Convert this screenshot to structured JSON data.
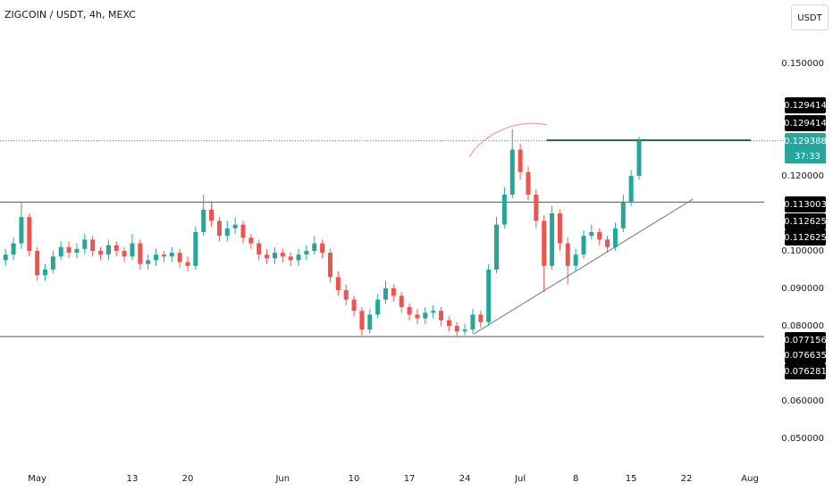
{
  "chart_data": {
    "type": "candlestick",
    "title": "ZIGCOIN / USDT, 4h, MEXC",
    "currency_button": "USDT",
    "up_color": "#26a69a",
    "down_color": "#ef5350",
    "grid": false,
    "ylim": [
      0.0431,
      0.1669
    ],
    "yticks": [
      {
        "value": 0.15,
        "label": "0.150000"
      },
      {
        "value": 0.12,
        "label": "0.120000"
      },
      {
        "value": 0.1,
        "label": "0.100000"
      },
      {
        "value": 0.09,
        "label": "0.090000"
      },
      {
        "value": 0.08,
        "label": "0.080000"
      },
      {
        "value": 0.06,
        "label": "0.060000"
      },
      {
        "value": 0.05,
        "label": "0.050000"
      }
    ],
    "xlim": [
      -4.7,
      91.8
    ],
    "xticks": [
      {
        "value": 0,
        "label": "May"
      },
      {
        "value": 12,
        "label": "13"
      },
      {
        "value": 19,
        "label": "20"
      },
      {
        "value": 31,
        "label": "Jun"
      },
      {
        "value": 40,
        "label": "10"
      },
      {
        "value": 47,
        "label": "17"
      },
      {
        "value": 54,
        "label": "24"
      },
      {
        "value": 61,
        "label": "Jul"
      },
      {
        "value": 68,
        "label": "8"
      },
      {
        "value": 75,
        "label": "15"
      },
      {
        "value": 82,
        "label": "22"
      },
      {
        "value": 90,
        "label": "Aug"
      }
    ],
    "x": [
      -4,
      -3,
      -2,
      -1,
      0,
      1,
      2,
      3,
      4,
      5,
      6,
      7,
      8,
      9,
      10,
      11,
      12,
      13,
      14,
      15,
      16,
      17,
      18,
      19,
      20,
      21,
      22,
      23,
      24,
      25,
      26,
      27,
      28,
      29,
      30,
      31,
      32,
      33,
      34,
      35,
      36,
      37,
      38,
      39,
      40,
      41,
      42,
      43,
      44,
      45,
      46,
      47,
      48,
      49,
      50,
      51,
      52,
      53,
      54,
      55,
      56,
      57,
      58,
      59,
      60,
      61,
      62,
      63,
      64,
      65,
      66,
      67,
      68,
      69,
      70,
      71,
      72,
      73,
      74,
      75,
      76
    ],
    "open": [
      0.0975,
      0.099,
      0.102,
      0.109,
      0.1,
      0.0935,
      0.095,
      0.0985,
      0.101,
      0.0995,
      0.1005,
      0.103,
      0.1,
      0.099,
      0.1015,
      0.1,
      0.0985,
      0.102,
      0.0965,
      0.0975,
      0.099,
      0.0985,
      0.0995,
      0.097,
      0.096,
      0.105,
      0.111,
      0.108,
      0.104,
      0.106,
      0.107,
      0.1035,
      0.102,
      0.099,
      0.098,
      0.0995,
      0.0985,
      0.0975,
      0.099,
      0.1,
      0.102,
      0.0995,
      0.093,
      0.0895,
      0.087,
      0.084,
      0.079,
      0.083,
      0.087,
      0.09,
      0.088,
      0.085,
      0.083,
      0.082,
      0.0835,
      0.084,
      0.0815,
      0.08,
      0.0785,
      0.079,
      0.083,
      0.081,
      0.095,
      0.107,
      0.115,
      0.127,
      0.121,
      0.115,
      0.108,
      0.096,
      0.11,
      0.102,
      0.096,
      0.099,
      0.104,
      0.105,
      0.103,
      0.101,
      0.106,
      0.113,
      0.12
    ],
    "high": [
      0.1005,
      0.1035,
      0.113,
      0.11,
      0.101,
      0.0965,
      0.1,
      0.1025,
      0.1025,
      0.102,
      0.1045,
      0.104,
      0.101,
      0.103,
      0.1025,
      0.101,
      0.1045,
      0.103,
      0.099,
      0.1005,
      0.1,
      0.101,
      0.1005,
      0.0985,
      0.1065,
      0.115,
      0.113,
      0.109,
      0.108,
      0.109,
      0.108,
      0.1045,
      0.103,
      0.1005,
      0.101,
      0.1005,
      0.0995,
      0.1005,
      0.1015,
      0.104,
      0.103,
      0.1005,
      0.0945,
      0.091,
      0.088,
      0.085,
      0.0845,
      0.0885,
      0.092,
      0.091,
      0.089,
      0.086,
      0.0845,
      0.085,
      0.0855,
      0.085,
      0.0825,
      0.081,
      0.0805,
      0.0845,
      0.084,
      0.0965,
      0.109,
      0.117,
      0.1324,
      0.1285,
      0.1225,
      0.1165,
      0.1095,
      0.112,
      0.111,
      0.1035,
      0.1005,
      0.1055,
      0.107,
      0.106,
      0.104,
      0.1075,
      0.115,
      0.1215,
      0.1305
    ],
    "low": [
      0.096,
      0.0975,
      0.1005,
      0.0985,
      0.092,
      0.092,
      0.094,
      0.0975,
      0.098,
      0.098,
      0.099,
      0.0985,
      0.0975,
      0.0975,
      0.0985,
      0.097,
      0.0975,
      0.095,
      0.095,
      0.096,
      0.097,
      0.097,
      0.0955,
      0.0945,
      0.095,
      0.104,
      0.1065,
      0.1025,
      0.1025,
      0.1045,
      0.102,
      0.1005,
      0.0975,
      0.0965,
      0.0965,
      0.097,
      0.096,
      0.096,
      0.0975,
      0.099,
      0.098,
      0.0915,
      0.088,
      0.0855,
      0.0825,
      0.0775,
      0.078,
      0.082,
      0.086,
      0.0865,
      0.0835,
      0.0815,
      0.0805,
      0.0805,
      0.082,
      0.08,
      0.0785,
      0.0772,
      0.0775,
      0.078,
      0.0795,
      0.08,
      0.094,
      0.106,
      0.114,
      0.119,
      0.1135,
      0.106,
      0.089,
      0.095,
      0.1,
      0.091,
      0.0945,
      0.098,
      0.103,
      0.1015,
      0.0995,
      0.1,
      0.105,
      0.112,
      0.119
    ],
    "close": [
      0.099,
      0.102,
      0.109,
      0.1,
      0.0935,
      0.095,
      0.0985,
      0.101,
      0.0995,
      0.1005,
      0.103,
      0.1,
      0.099,
      0.1015,
      0.1,
      0.0985,
      0.102,
      0.0965,
      0.0975,
      0.099,
      0.0985,
      0.0995,
      0.097,
      0.096,
      0.105,
      0.111,
      0.108,
      0.104,
      0.106,
      0.107,
      0.1035,
      0.102,
      0.099,
      0.098,
      0.0995,
      0.0985,
      0.0975,
      0.099,
      0.1,
      0.102,
      0.0995,
      0.093,
      0.0895,
      0.087,
      0.084,
      0.079,
      0.083,
      0.087,
      0.09,
      0.088,
      0.085,
      0.083,
      0.082,
      0.0835,
      0.084,
      0.0815,
      0.08,
      0.0785,
      0.079,
      0.083,
      0.081,
      0.095,
      0.107,
      0.115,
      0.127,
      0.121,
      0.115,
      0.108,
      0.096,
      0.11,
      0.102,
      0.096,
      0.099,
      0.104,
      0.105,
      0.103,
      0.101,
      0.106,
      0.113,
      0.12,
      0.129388
    ],
    "hlines": [
      0.113003,
      0.077156
    ],
    "current_price": 0.129388,
    "trendline": {
      "x": [
        55.1,
        82.8
      ],
      "y": [
        0.0778,
        0.1138
      ]
    },
    "resistance": {
      "x": [
        64.3,
        90.1
      ],
      "y": [
        0.1295,
        0.1295
      ]
    },
    "price_labels": [
      {
        "value": 0.129414,
        "label": "0.129414",
        "color": "#000000"
      },
      {
        "value": 0.129414,
        "label": "0.129414",
        "color": "#000000"
      },
      {
        "value": 0.129388,
        "label": "0.129388",
        "color": "#26a69a"
      },
      {
        "value": 0.113003,
        "label": "0.113003",
        "color": "#000000"
      },
      {
        "value": 0.112625,
        "label": "0.112625",
        "color": "#000000"
      },
      {
        "value": 0.112625,
        "label": "0.112625",
        "color": "#000000"
      },
      {
        "value": 0.077156,
        "label": "0.077156",
        "color": "#000000"
      },
      {
        "value": 0.076635,
        "label": "0.076635",
        "color": "#000000"
      },
      {
        "value": 0.076281,
        "label": "0.076281",
        "color": "#000000"
      }
    ],
    "countdown": "37:33"
  }
}
